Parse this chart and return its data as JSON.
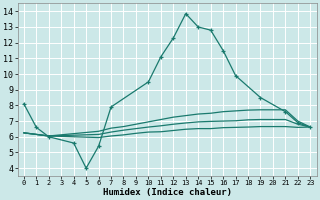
{
  "title": "",
  "xlabel": "Humidex (Indice chaleur)",
  "ylabel": "",
  "bg_color": "#cce8e8",
  "grid_color": "#ffffff",
  "line_color": "#1a7a6e",
  "xlim": [
    -0.5,
    23.5
  ],
  "ylim": [
    3.5,
    14.5
  ],
  "xticks": [
    0,
    1,
    2,
    3,
    4,
    5,
    6,
    7,
    8,
    9,
    10,
    11,
    12,
    13,
    14,
    15,
    16,
    17,
    18,
    19,
    20,
    21,
    22,
    23
  ],
  "yticks": [
    4,
    5,
    6,
    7,
    8,
    9,
    10,
    11,
    12,
    13,
    14
  ],
  "series": [
    {
      "x": [
        0,
        1,
        2,
        4,
        5,
        6,
        7,
        10,
        11,
        12,
        13,
        14,
        15,
        16,
        17,
        19,
        21,
        22,
        23
      ],
      "y": [
        8.1,
        6.6,
        6.0,
        5.6,
        4.0,
        5.4,
        7.9,
        9.5,
        11.1,
        12.3,
        13.85,
        13.0,
        12.8,
        11.5,
        9.9,
        8.5,
        7.6,
        6.9,
        6.6
      ],
      "marker": true,
      "connected": false
    },
    {
      "x": [
        0,
        2,
        6,
        7,
        8,
        9,
        10,
        11,
        12,
        13,
        14,
        15,
        16,
        17,
        18,
        19,
        20,
        21,
        22,
        23
      ],
      "y": [
        6.25,
        6.05,
        6.35,
        6.55,
        6.65,
        6.8,
        6.95,
        7.1,
        7.25,
        7.35,
        7.45,
        7.5,
        7.6,
        7.65,
        7.7,
        7.72,
        7.72,
        7.72,
        7.0,
        6.62
      ],
      "marker": false,
      "connected": true
    },
    {
      "x": [
        0,
        2,
        6,
        7,
        8,
        9,
        10,
        11,
        12,
        13,
        14,
        15,
        16,
        17,
        18,
        19,
        20,
        21,
        22,
        23
      ],
      "y": [
        6.25,
        6.05,
        6.15,
        6.3,
        6.42,
        6.52,
        6.62,
        6.7,
        6.8,
        6.88,
        6.95,
        6.98,
        7.0,
        7.02,
        7.08,
        7.1,
        7.1,
        7.1,
        6.8,
        6.62
      ],
      "marker": false,
      "connected": true
    },
    {
      "x": [
        0,
        2,
        6,
        7,
        8,
        9,
        10,
        11,
        12,
        13,
        14,
        15,
        16,
        17,
        18,
        19,
        20,
        21,
        22,
        23
      ],
      "y": [
        6.25,
        6.05,
        5.95,
        6.05,
        6.12,
        6.22,
        6.3,
        6.32,
        6.4,
        6.48,
        6.52,
        6.52,
        6.58,
        6.6,
        6.62,
        6.65,
        6.65,
        6.65,
        6.6,
        6.62
      ],
      "marker": false,
      "connected": true
    }
  ]
}
